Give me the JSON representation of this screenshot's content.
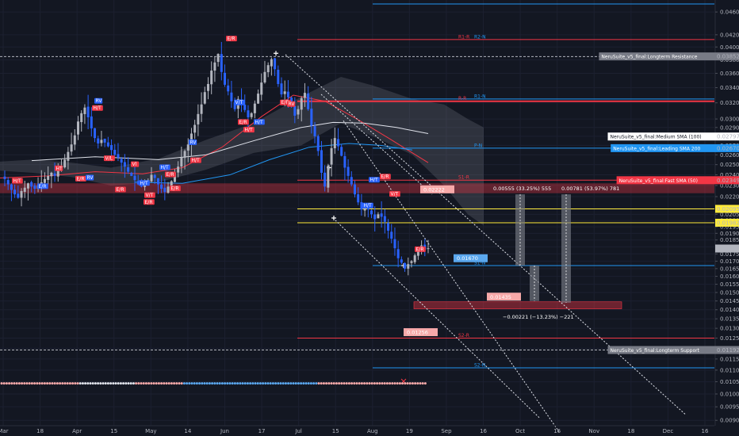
{
  "chart_data": {
    "type": "candlestick",
    "symbol_scale": "log",
    "y_ticks": [
      "0.04600",
      "0.04200",
      "0.04000",
      "0.03800",
      "0.03600",
      "0.03400",
      "0.03200",
      "0.03000",
      "0.02900",
      "0.02800",
      "0.02700",
      "0.02600",
      "0.02500",
      "0.02400",
      "0.02300",
      "0.02200",
      "0.02100",
      "0.02050",
      "0.02000",
      "0.01950",
      "0.01900",
      "0.01850",
      "0.01800",
      "0.01750",
      "0.01700",
      "0.01650",
      "0.01600",
      "0.01550",
      "0.01500",
      "0.01450",
      "0.01400",
      "0.01350",
      "0.01300",
      "0.01250",
      "0.01200",
      "0.01150",
      "0.01100",
      "0.01050",
      "0.01000",
      "0.00950",
      "0.00900"
    ],
    "x_ticks": [
      "Mar",
      "18",
      "Apr",
      "15",
      "May",
      "14",
      "Jun",
      "17",
      "Jul",
      "15",
      "Aug",
      "19",
      "Sep",
      "16",
      "Oct",
      "16",
      "Nov",
      "18",
      "Dec",
      "16"
    ],
    "ylim": [
      0.00895,
      0.0475
    ],
    "price_axis_labels": [
      {
        "text": "NeruSuite_v5_final:Longterm Resistance",
        "value": "0.03852",
        "color": "#787b86",
        "text_color": "#ffffff"
      },
      {
        "text": "NeruSuite_v5_final:Medium SMA (100)",
        "value": "0.02797",
        "color": "#ffffff",
        "text_color": "#131722"
      },
      {
        "text": "NeruSuite_v5_final:Leading SMA 200",
        "value": "0.02670",
        "color": "#2196f3",
        "text_color": "#ffffff"
      },
      {
        "text": "NeruSuite_v5_final:Fast SMA (50)",
        "value": "0.02349",
        "color": "#f23645",
        "text_color": "#ffffff"
      },
      {
        "text": "",
        "value": "0.02095",
        "color": "#ffeb3b",
        "text_color": "#131722"
      },
      {
        "text": "",
        "value": "0.01982",
        "color": "#ffeb3b",
        "text_color": "#131722"
      },
      {
        "text": "",
        "value": "0.01788",
        "color": "#b2b5be",
        "text_color": "#131722"
      },
      {
        "text": "NeruSuite_v5_final:Longterm Support",
        "value": "0.01192",
        "color": "#787b86",
        "text_color": "#ffffff"
      }
    ],
    "pivot_labels": [
      "R1-R",
      "R2-N",
      "R-R",
      "R1-N",
      "P-N",
      "S1-R",
      "S1-N",
      "S2-R",
      "S2-N"
    ],
    "price_callouts": [
      "0.02222",
      "0.01670",
      "0.01435",
      "0.01256"
    ],
    "measure_labels": [
      "0.00555 (33.25%) 555",
      "0.00781 (53.97%) 781",
      "−0.00221 (−13.23%) −221"
    ],
    "signal_labels": [
      "H/T",
      "E/R",
      "HT",
      "E/R",
      "RV",
      "V/L",
      "E/R",
      "H/T",
      "V/T",
      "E/R",
      "H/T",
      "H/T",
      "E/R",
      "RV",
      "Vl",
      "E/R",
      "RV",
      "E/R",
      "H/T",
      "V/T",
      "E/R",
      "H/T",
      "H/T",
      "E/R",
      "RV",
      "H/T",
      "E/R",
      "E/R",
      "H/T",
      "V/T"
    ],
    "series": [
      {
        "name": "Fast SMA (50)",
        "color": "#f23645"
      },
      {
        "name": "Medium SMA (100)",
        "color": "#e0e3eb"
      },
      {
        "name": "Leading SMA 200",
        "color": "#2196f3"
      },
      {
        "name": "Cloud",
        "color": "#787b86"
      }
    ],
    "ohlc_close": [
      0.0236,
      0.0231,
      0.0226,
      0.0222,
      0.0219,
      0.0225,
      0.0228,
      0.0232,
      0.0229,
      0.0227,
      0.023,
      0.0233,
      0.0236,
      0.0239,
      0.0242,
      0.0239,
      0.0244,
      0.0248,
      0.0255,
      0.0263,
      0.0271,
      0.0281,
      0.0297,
      0.0307,
      0.0314,
      0.0302,
      0.0289,
      0.0278,
      0.0272,
      0.0276,
      0.0273,
      0.0269,
      0.0265,
      0.026,
      0.0257,
      0.0252,
      0.0248,
      0.0243,
      0.0239,
      0.0235,
      0.0231,
      0.0229,
      0.0233,
      0.0235,
      0.024,
      0.0237,
      0.0231,
      0.0227,
      0.0224,
      0.0229,
      0.0234,
      0.0242,
      0.0248,
      0.0257,
      0.0264,
      0.0271,
      0.0283,
      0.0293,
      0.0306,
      0.0318,
      0.0334,
      0.0345,
      0.0364,
      0.0376,
      0.0389,
      0.0362,
      0.0344,
      0.0335,
      0.0322,
      0.0312,
      0.0325,
      0.0318,
      0.0311,
      0.0302,
      0.0307,
      0.0319,
      0.0332,
      0.0347,
      0.0362,
      0.0372,
      0.0381,
      0.0366,
      0.0345,
      0.0331,
      0.0335,
      0.0327,
      0.0317,
      0.0304,
      0.0312,
      0.0326,
      0.0333,
      0.0312,
      0.0292,
      0.028,
      0.0264,
      0.0242,
      0.0229,
      0.0249,
      0.0267,
      0.0278,
      0.0269,
      0.0259,
      0.0247,
      0.0239,
      0.0231,
      0.0222,
      0.0215,
      0.0209,
      0.0213,
      0.0209,
      0.0205,
      0.0201,
      0.0205,
      0.0203,
      0.0199,
      0.0192,
      0.0186,
      0.0179,
      0.0172,
      0.0169,
      0.0165,
      0.0168,
      0.017,
      0.0174,
      0.0178,
      0.0181,
      0.0178,
      0.0179
    ]
  }
}
